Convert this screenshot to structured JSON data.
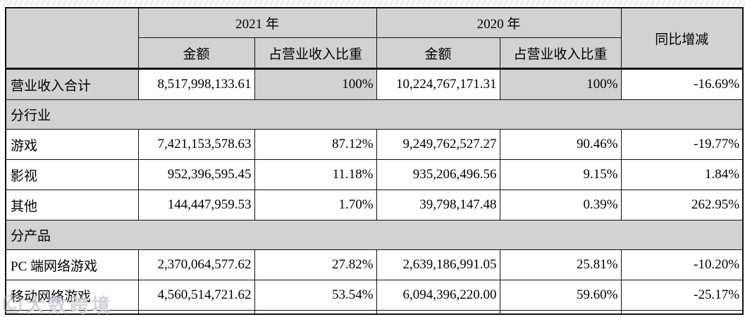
{
  "table": {
    "header": {
      "year_2021": "2021 年",
      "year_2020": "2020 年",
      "yoy": "同比增减",
      "amount_2021": "金额",
      "pct_2021": "占营业收入比重",
      "amount_2020": "金额",
      "pct_2020": "占营业收入比重"
    },
    "rows": [
      {
        "type": "data",
        "shaded": true,
        "label": "营业收入合计",
        "amount_2021": "8,517,998,133.61",
        "pct_2021": "100%",
        "amount_2020": "10,224,767,171.31",
        "pct_2020": "100%",
        "yoy": "-16.69%"
      },
      {
        "type": "section",
        "label": "分行业"
      },
      {
        "type": "data",
        "shaded": false,
        "label": "游戏",
        "amount_2021": "7,421,153,578.63",
        "pct_2021": "87.12%",
        "amount_2020": "9,249,762,527.27",
        "pct_2020": "90.46%",
        "yoy": "-19.77%"
      },
      {
        "type": "data",
        "shaded": false,
        "label": "影视",
        "amount_2021": "952,396,595.45",
        "pct_2021": "11.18%",
        "amount_2020": "935,206,496.56",
        "pct_2020": "9.15%",
        "yoy": "1.84%"
      },
      {
        "type": "data",
        "shaded": false,
        "label": "其他",
        "amount_2021": "144,447,959.53",
        "pct_2021": "1.70%",
        "amount_2020": "39,798,147.48",
        "pct_2020": "0.39%",
        "yoy": "262.95%"
      },
      {
        "type": "section",
        "label": "分产品"
      },
      {
        "type": "data",
        "shaded": false,
        "label": "PC 端网络游戏",
        "amount_2021": "2,370,064,577.62",
        "pct_2021": "27.82%",
        "amount_2020": "2,639,186,991.05",
        "pct_2020": "25.81%",
        "yoy": "-10.20%"
      },
      {
        "type": "data",
        "shaded": false,
        "label": "移动网络游戏",
        "amount_2021": "4,560,514,721.62",
        "pct_2021": "53.54%",
        "amount_2020": "6,094,396,220.00",
        "pct_2020": "59.60%",
        "yoy": "-25.17%"
      }
    ]
  },
  "watermark": {
    "text": "大数跨境"
  },
  "colors": {
    "cell_shaded": "#d2d2d2",
    "border": "#111111",
    "watermark": "#a8aeb4"
  }
}
